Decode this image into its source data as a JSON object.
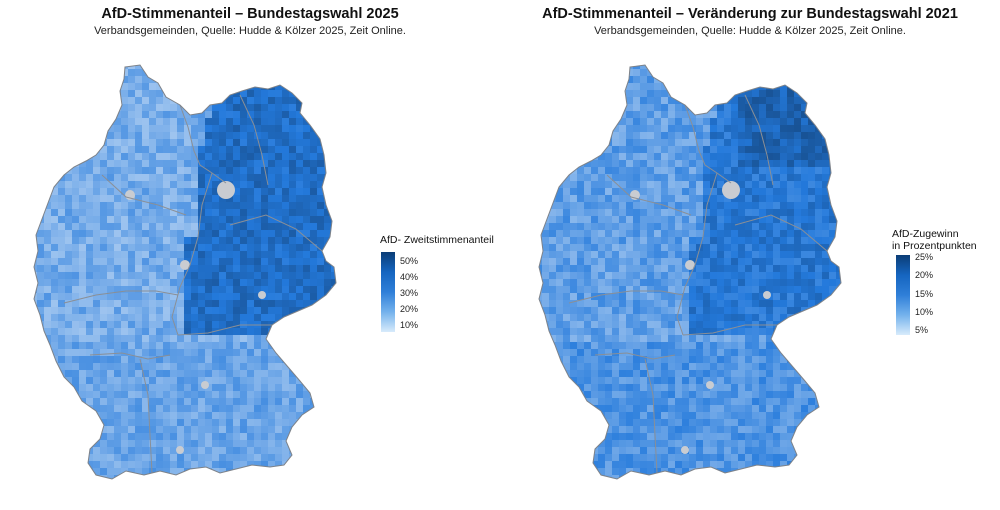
{
  "colors": {
    "east_dark": "#1f63c4",
    "west_light": "#8cc2f0",
    "mid": "#4f97e4",
    "border": "#808080",
    "nodata": "#bfc4ca"
  },
  "left_panel": {
    "title": "AfD-Stimmenanteil – Bundestagswahl 2025",
    "subtitle": "Verbandsgemeinden, Quelle: Hudde & Kölzer 2025, Zeit Online.",
    "legend": {
      "title_lines": [
        "AfD- Zweitstimmenanteil"
      ],
      "ticks": [
        "50%",
        "40%",
        "30%",
        "20%",
        "10%"
      ]
    }
  },
  "right_panel": {
    "title": "AfD-Stimmenanteil – Veränderung zur Bundestagswahl 2021",
    "subtitle": "Verbandsgemeinden, Quelle: Hudde & Kölzer 2025, Zeit Online.",
    "legend": {
      "title_lines": [
        "AfD-Zugewinn",
        "in Prozentpunkten"
      ],
      "ticks": [
        "25%",
        "20%",
        "15%",
        "10%",
        "5%"
      ]
    }
  }
}
